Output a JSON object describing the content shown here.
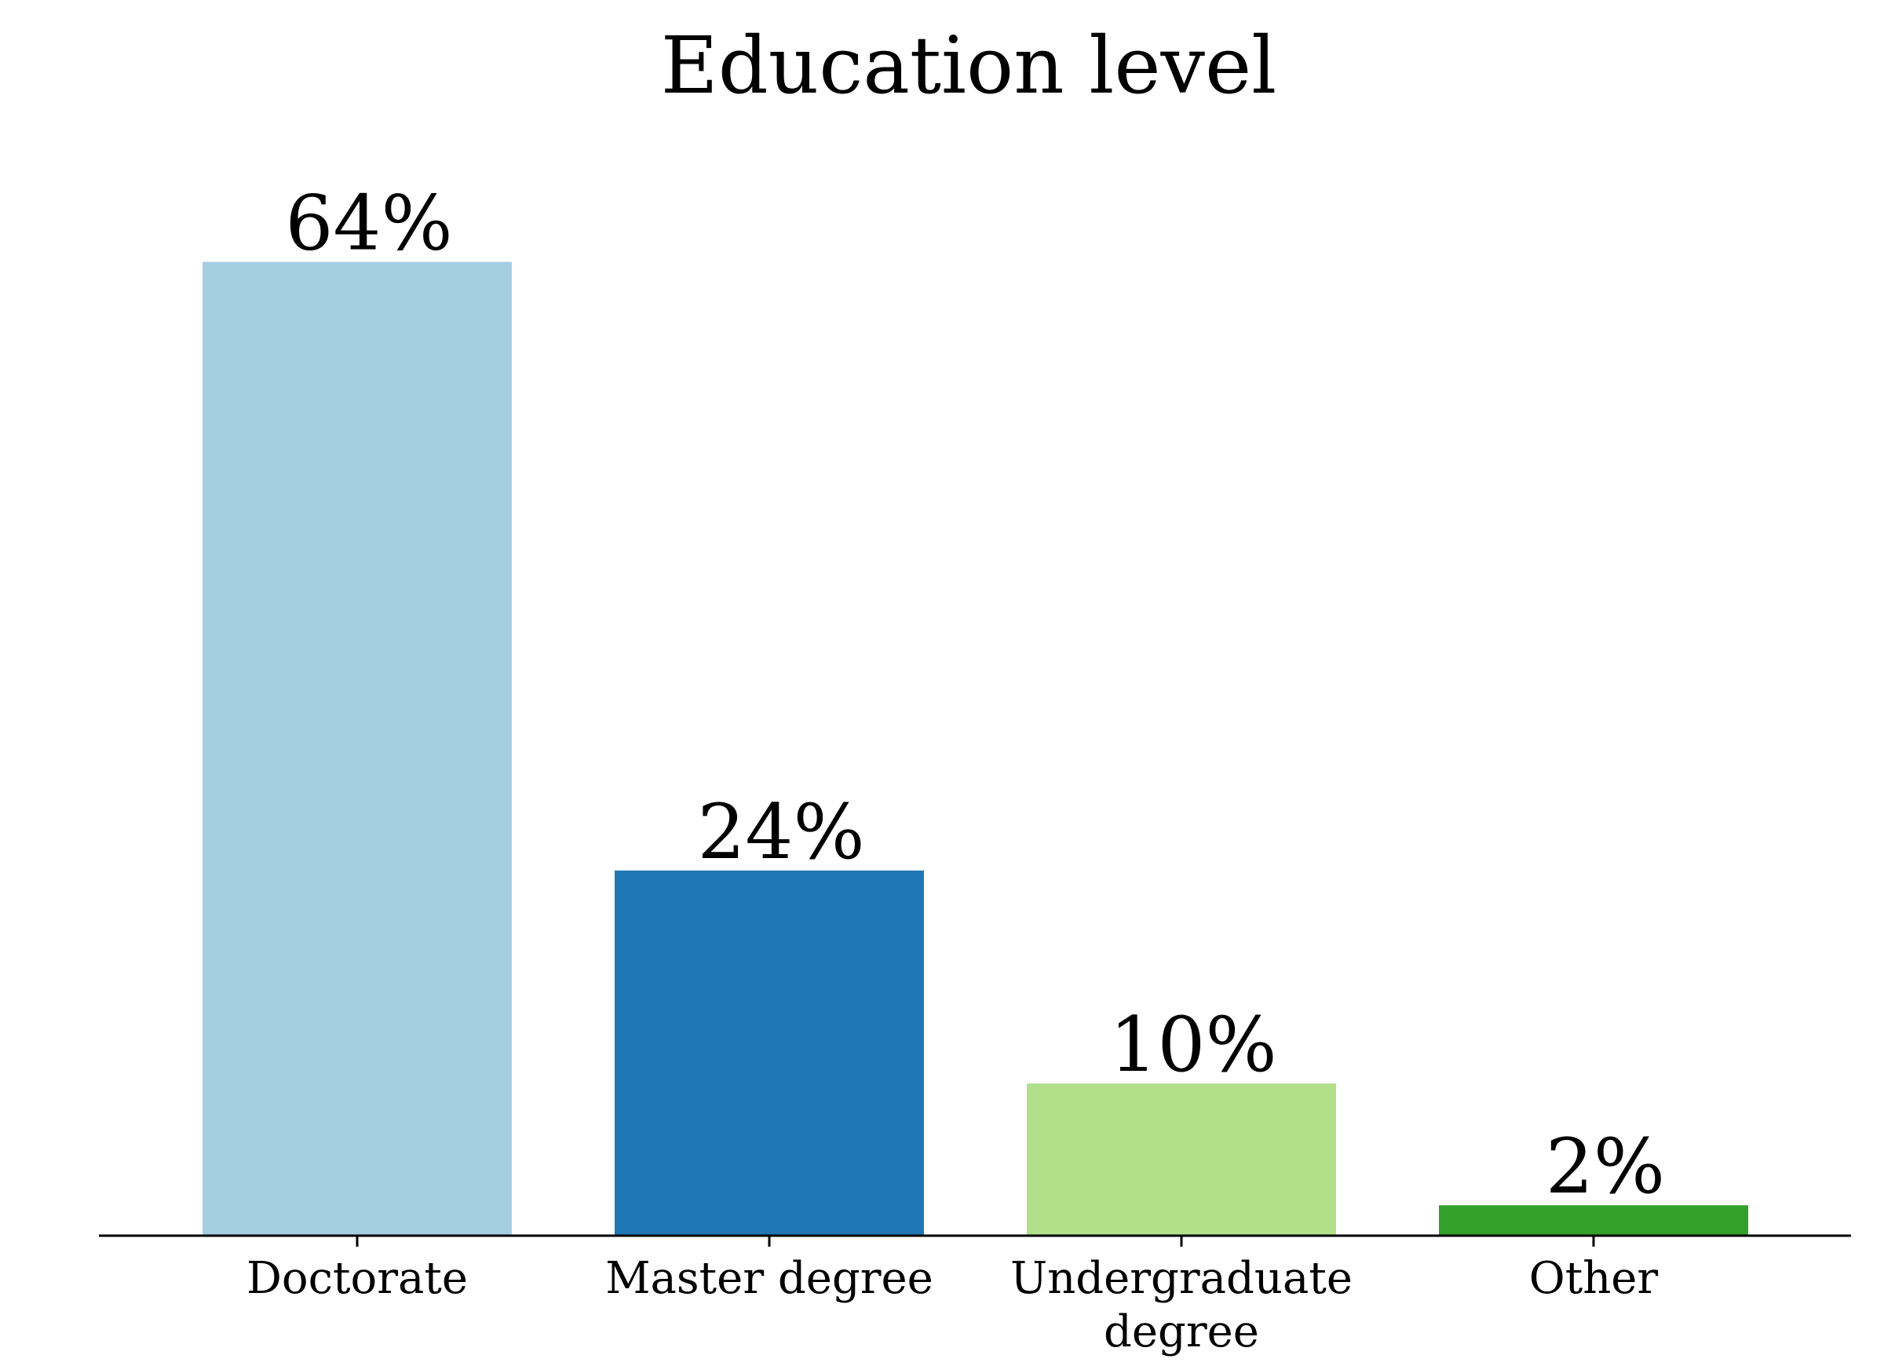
{
  "chart_data": {
    "type": "bar",
    "title": "Education level",
    "categories": [
      [
        "Doctorate"
      ],
      [
        "Master degree"
      ],
      [
        "Undergraduate",
        "degree"
      ],
      [
        "Other"
      ]
    ],
    "values": [
      64,
      24,
      10,
      2
    ],
    "value_labels": [
      "64%",
      "24%",
      "10%",
      "2%"
    ],
    "colors": [
      "#a6cee3",
      "#1f78b4",
      "#b2df8a",
      "#33a02c"
    ],
    "xlabel": "",
    "ylabel": "",
    "ylim": [
      0,
      68
    ],
    "grid": false,
    "y_axis_visible": false
  }
}
